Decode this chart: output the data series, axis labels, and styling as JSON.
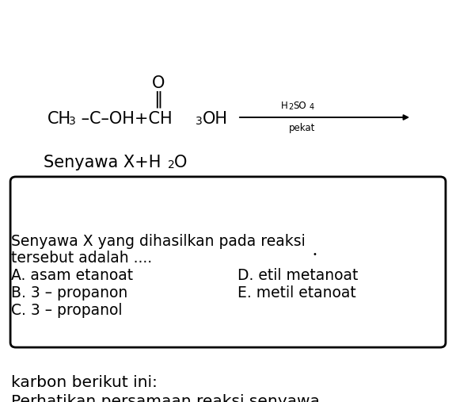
{
  "background_color": "#ffffff",
  "title_line1": "Perhatikan persamaan reaksi senyawa",
  "title_line2": "karbon berikut ini:",
  "question_line1": "Senyawa X yang dihasilkan pada reaksi",
  "question_line2": "tersebut adalah ....",
  "options_left": [
    "A. asam etanoat",
    "B. 3 – propanon",
    "C. 3 – propanol"
  ],
  "options_right": [
    "D. etil metanoat",
    "E. metil etanoat"
  ],
  "text_color": "#000000",
  "box_color": "#000000",
  "font_size_title": 14.5,
  "font_size_body": 13.5,
  "font_size_chem": 15,
  "font_size_sub": 10,
  "font_size_small": 8.5,
  "font_size_small_sub": 7
}
